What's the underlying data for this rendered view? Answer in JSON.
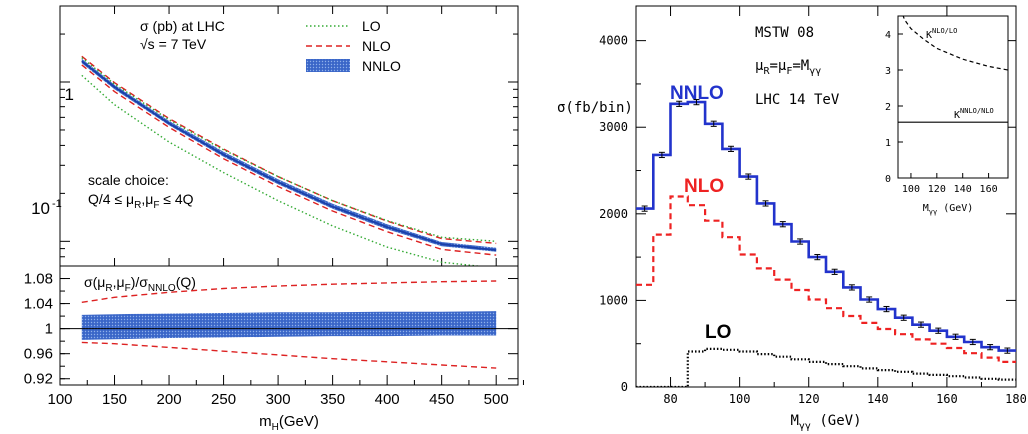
{
  "chart_data": [
    {
      "type": "line",
      "panel": "top",
      "title_lines": [
        "σ (pb) at LHC",
        "√s = 7 TeV"
      ],
      "annotation_lines": [
        "scale choice:",
        "Q/4 ≤ μR,μF ≤ 4Q"
      ],
      "yscale": "log",
      "ylim": [
        0.07,
        3.0
      ],
      "xlim": [
        100,
        520
      ],
      "y_tick_labels": [
        {
          "v": 1,
          "t": "1"
        },
        {
          "v": 0.1,
          "t": "10-1"
        }
      ],
      "legend": {
        "placement": "top-right",
        "entries": [
          "LO",
          "NLO",
          "NNLO"
        ]
      },
      "x": [
        120,
        150,
        200,
        250,
        300,
        350,
        400,
        450,
        500
      ],
      "series": [
        {
          "name": "NNLO",
          "color": "#2255cc",
          "band": true,
          "values": [
            1.35,
            0.93,
            0.55,
            0.35,
            0.235,
            0.165,
            0.123,
            0.096,
            0.088
          ],
          "upper": [
            1.4,
            0.96,
            0.57,
            0.365,
            0.245,
            0.172,
            0.128,
            0.099,
            0.091
          ],
          "lower": [
            1.31,
            0.9,
            0.535,
            0.34,
            0.228,
            0.16,
            0.119,
            0.093,
            0.086
          ]
        },
        {
          "name": "NLO",
          "color": "#dd2222",
          "upper": [
            1.45,
            0.99,
            0.59,
            0.38,
            0.255,
            0.18,
            0.134,
            0.104,
            0.097
          ],
          "lower": [
            1.28,
            0.87,
            0.52,
            0.33,
            0.221,
            0.155,
            0.115,
            0.089,
            0.082
          ]
        },
        {
          "name": "LO",
          "color": "#33aa33",
          "upper": [
            1.42,
            0.97,
            0.58,
            0.375,
            0.255,
            0.18,
            0.135,
            0.106,
            0.1
          ],
          "lower": [
            1.1,
            0.72,
            0.42,
            0.27,
            0.18,
            0.125,
            0.092,
            0.074,
            0.068
          ]
        }
      ]
    },
    {
      "type": "line",
      "panel": "ratio",
      "ylabel": "σ(μR,μF)/σNNLO(Q)",
      "ylim": [
        0.91,
        1.1
      ],
      "yticks": [
        0.92,
        0.96,
        1,
        1.04,
        1.08
      ],
      "y_tick_labels": [
        "0.92",
        "0.96",
        "1",
        "1.04",
        "1.08"
      ],
      "xlabel": "mH(GeV)",
      "xlim": [
        100,
        520
      ],
      "xticks": [
        100,
        150,
        200,
        250,
        300,
        350,
        400,
        450,
        500
      ],
      "x_tick_labels": [
        "100",
        "150",
        "200",
        "250",
        "300",
        "350",
        "400",
        "450",
        "500"
      ],
      "x": [
        120,
        150,
        200,
        250,
        300,
        350,
        400,
        450,
        500
      ],
      "series": [
        {
          "name": "NNLO",
          "color": "#2255cc",
          "band": true,
          "upper": [
            1.022,
            1.023,
            1.024,
            1.025,
            1.026,
            1.026,
            1.027,
            1.027,
            1.028
          ],
          "lower": [
            0.982,
            0.983,
            0.985,
            0.986,
            0.987,
            0.988,
            0.988,
            0.989,
            0.989
          ]
        },
        {
          "name": "NLO",
          "color": "#dd2222",
          "upper": [
            1.042,
            1.05,
            1.058,
            1.064,
            1.068,
            1.071,
            1.073,
            1.075,
            1.076
          ],
          "lower": [
            0.978,
            0.976,
            0.97,
            0.964,
            0.958,
            0.952,
            0.947,
            0.942,
            0.937
          ]
        }
      ]
    },
    {
      "type": "line",
      "panel": "main",
      "ylabel": "σ(fb/bin)",
      "xlabel": "Mγγ (GeV)",
      "text_lines": [
        "MSTW 08",
        "μR=μF=Mγγ",
        "LHC 14 TeV"
      ],
      "series_labels": [
        "NNLO",
        "NLO",
        "LO"
      ],
      "xlim": [
        70,
        180
      ],
      "ylim": [
        0,
        4400
      ],
      "xticks": [
        80,
        100,
        120,
        140,
        160,
        180
      ],
      "x_tick_labels": [
        "80",
        "100",
        "120",
        "140",
        "160",
        "180"
      ],
      "yticks": [
        0,
        1000,
        2000,
        3000,
        4000
      ],
      "y_tick_labels": [
        "0",
        "1000",
        "2000",
        "3000",
        "4000"
      ],
      "bin_edges": [
        70,
        75,
        80,
        85,
        90,
        95,
        100,
        105,
        110,
        115,
        120,
        125,
        130,
        135,
        140,
        145,
        150,
        155,
        160,
        165,
        170,
        175,
        180
      ],
      "series": [
        {
          "name": "NNLO",
          "color": "#2233cc",
          "style": "solid",
          "errorbars": true,
          "values": [
            2060,
            2680,
            3270,
            3290,
            3040,
            2750,
            2430,
            2120,
            1880,
            1680,
            1500,
            1330,
            1150,
            1010,
            900,
            800,
            720,
            650,
            580,
            520,
            460,
            420
          ]
        },
        {
          "name": "NLO",
          "color": "#ee2222",
          "style": "dashed",
          "values": [
            1180,
            1760,
            2200,
            2100,
            1920,
            1730,
            1530,
            1370,
            1240,
            1120,
            1010,
            910,
            820,
            740,
            670,
            610,
            550,
            500,
            450,
            390,
            340,
            290
          ]
        },
        {
          "name": "LO",
          "color": "#000000",
          "style": "dotted",
          "values": [
            0,
            0,
            0,
            410,
            440,
            430,
            410,
            380,
            350,
            320,
            290,
            265,
            240,
            215,
            195,
            175,
            155,
            140,
            125,
            110,
            95,
            85
          ]
        }
      ]
    },
    {
      "type": "line",
      "panel": "inset",
      "xlabel": "Mγγ (GeV)",
      "xlim": [
        90,
        175
      ],
      "ylim": [
        0,
        4.5
      ],
      "xticks": [
        100,
        120,
        140,
        160
      ],
      "x_tick_labels": [
        "100",
        "120",
        "140",
        "160"
      ],
      "yticks": [
        0,
        1,
        2,
        3,
        4
      ],
      "y_tick_labels": [
        "0",
        "1",
        "2",
        "3",
        "4"
      ],
      "x": [
        90,
        95,
        100,
        110,
        120,
        130,
        140,
        150,
        160,
        175
      ],
      "series": [
        {
          "name": "K NLO/LO",
          "label": "KNLO/LO",
          "style": "dashed",
          "values": [
            4.9,
            4.4,
            4.15,
            3.85,
            3.6,
            3.45,
            3.3,
            3.2,
            3.1,
            3.0
          ]
        },
        {
          "name": "K NNLO/NLO",
          "label": "KNNLO/NLO",
          "style": "solid",
          "values": [
            1.55,
            1.55,
            1.55,
            1.55,
            1.55,
            1.55,
            1.55,
            1.55,
            1.55,
            1.55
          ]
        }
      ]
    }
  ]
}
